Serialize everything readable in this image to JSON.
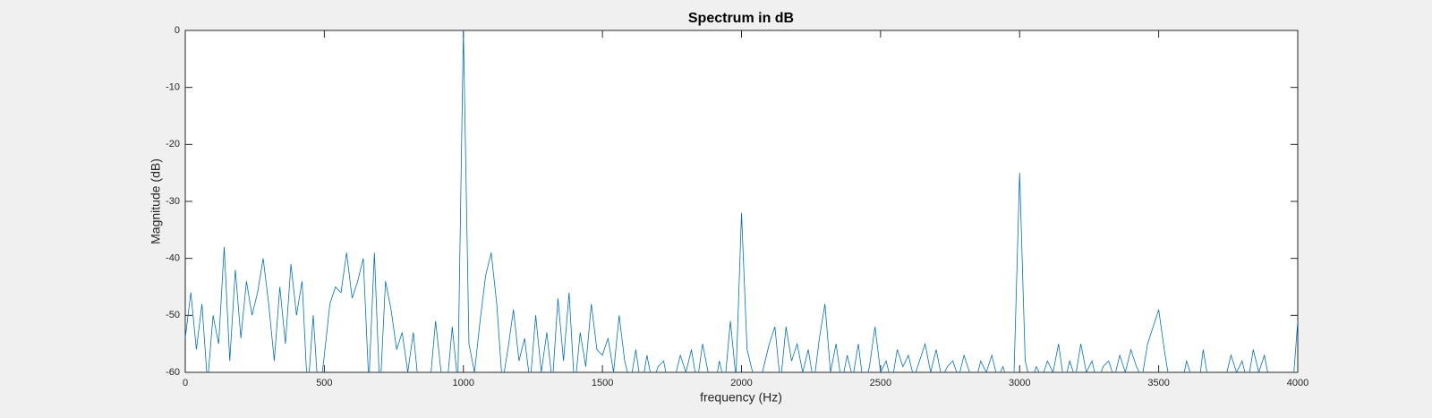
{
  "chart_data": {
    "type": "line",
    "title": "Spectrum in dB",
    "x_label": "frequency (Hz)",
    "y_label": "Magnitude (dB)",
    "color": "#0072bd",
    "grid": false,
    "xlim": [
      0,
      4000
    ],
    "xticks": [
      0,
      500,
      1000,
      1500,
      2000,
      2500,
      3000,
      3500,
      4000
    ],
    "ylim": [
      -60,
      0
    ],
    "yticks": [
      -60,
      -50,
      -40,
      -30,
      -20,
      -10,
      0
    ],
    "x": [
      0,
      20,
      40,
      60,
      80,
      100,
      120,
      140,
      160,
      180,
      200,
      220,
      240,
      260,
      280,
      300,
      320,
      340,
      360,
      380,
      400,
      420,
      440,
      460,
      480,
      500,
      520,
      540,
      560,
      580,
      600,
      620,
      640,
      660,
      680,
      700,
      720,
      740,
      760,
      780,
      800,
      820,
      840,
      860,
      880,
      900,
      920,
      940,
      960,
      980,
      1000,
      1020,
      1040,
      1060,
      1080,
      1100,
      1120,
      1140,
      1160,
      1180,
      1200,
      1220,
      1240,
      1260,
      1280,
      1300,
      1320,
      1340,
      1360,
      1380,
      1400,
      1420,
      1440,
      1460,
      1480,
      1500,
      1520,
      1540,
      1560,
      1580,
      1600,
      1620,
      1640,
      1660,
      1680,
      1700,
      1720,
      1740,
      1760,
      1780,
      1800,
      1820,
      1840,
      1860,
      1880,
      1900,
      1920,
      1940,
      1960,
      1980,
      2000,
      2020,
      2040,
      2060,
      2080,
      2100,
      2120,
      2140,
      2160,
      2180,
      2200,
      2220,
      2240,
      2260,
      2280,
      2300,
      2320,
      2340,
      2360,
      2380,
      2400,
      2420,
      2440,
      2460,
      2480,
      2500,
      2520,
      2540,
      2560,
      2580,
      2600,
      2620,
      2640,
      2660,
      2680,
      2700,
      2720,
      2740,
      2760,
      2780,
      2800,
      2820,
      2840,
      2860,
      2880,
      2900,
      2920,
      2940,
      2960,
      2980,
      3000,
      3020,
      3040,
      3060,
      3080,
      3100,
      3120,
      3140,
      3160,
      3180,
      3200,
      3220,
      3240,
      3260,
      3280,
      3300,
      3320,
      3340,
      3360,
      3380,
      3400,
      3420,
      3440,
      3460,
      3480,
      3500,
      3520,
      3540,
      3560,
      3580,
      3600,
      3620,
      3640,
      3660,
      3680,
      3700,
      3720,
      3740,
      3760,
      3780,
      3800,
      3820,
      3840,
      3860,
      3880,
      3900,
      3920,
      3940,
      3960,
      3980,
      4000
    ],
    "values": [
      -54,
      -46,
      -56,
      -48,
      -62,
      -50,
      -55,
      -38,
      -58,
      -42,
      -54,
      -44,
      -50,
      -46,
      -40,
      -48,
      -58,
      -45,
      -55,
      -41,
      -50,
      -44,
      -64,
      -50,
      -65,
      -57,
      -48,
      -45,
      -46,
      -39,
      -47,
      -44,
      -40,
      -62,
      -39,
      -64,
      -44,
      -49,
      -56,
      -53,
      -60,
      -53,
      -63,
      -66,
      -62,
      -51,
      -60,
      -63,
      -52,
      -62,
      0,
      -55,
      -60,
      -51,
      -43,
      -39,
      -48,
      -62,
      -56,
      -49,
      -58,
      -54,
      -62,
      -50,
      -60,
      -53,
      -62,
      -47,
      -58,
      -46,
      -63,
      -53,
      -59,
      -48,
      -56,
      -57,
      -54,
      -60,
      -50,
      -58,
      -62,
      -56,
      -63,
      -57,
      -62,
      -59,
      -58,
      -63,
      -61,
      -57,
      -60,
      -56,
      -62,
      -55,
      -60,
      -64,
      -58,
      -62,
      -51,
      -61,
      -32,
      -56,
      -60,
      -63,
      -59,
      -55,
      -52,
      -62,
      -52,
      -58,
      -55,
      -60,
      -56,
      -62,
      -54,
      -48,
      -60,
      -55,
      -62,
      -57,
      -61,
      -55,
      -63,
      -59,
      -52,
      -60,
      -58,
      -62,
      -56,
      -59,
      -57,
      -61,
      -58,
      -55,
      -60,
      -56,
      -61,
      -59,
      -58,
      -61,
      -57,
      -60,
      -62,
      -58,
      -60,
      -57,
      -61,
      -59,
      -62,
      -60,
      -25,
      -58,
      -62,
      -59,
      -61,
      -58,
      -60,
      -55,
      -62,
      -58,
      -61,
      -55,
      -60,
      -58,
      -62,
      -59,
      -58,
      -61,
      -57,
      -60,
      -56,
      -59,
      -61,
      -55,
      -52,
      -49,
      -56,
      -62,
      -60,
      -63,
      -58,
      -61,
      -64,
      -56,
      -62,
      -64,
      -63,
      -61,
      -57,
      -60,
      -58,
      -62,
      -56,
      -60,
      -57,
      -62,
      -63,
      -61,
      -60,
      -64,
      -51
    ]
  }
}
